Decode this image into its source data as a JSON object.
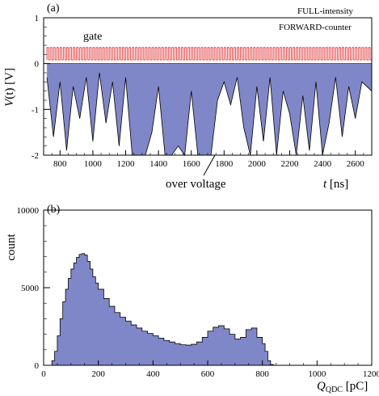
{
  "panel_a": {
    "label": "(a)",
    "legend_line1": "FULL-intensity",
    "legend_line2": "FORWARD-counter",
    "ylabel_italic": "V",
    "ylabel_rest": "(t) [V]",
    "xlabel_italic": "t",
    "xlabel_rest": " [ns]",
    "annotation_gate": "gate",
    "annotation_over": "over voltage"
  },
  "panel_b": {
    "label": "(b)",
    "ylabel": "count",
    "xlabel_main": "Q",
    "xlabel_sub": "QDC",
    "xlabel_unit": " [pC]"
  },
  "colors": {
    "fill": "#8087c8",
    "gate": "#dd2222",
    "line": "#000000"
  },
  "chart_data": [
    {
      "type": "line",
      "title": "",
      "xlabel": "t [ns]",
      "ylabel": "V(t) [V]",
      "xlim": [
        700,
        2700
      ],
      "ylim": [
        -2,
        1
      ],
      "xticks": [
        800,
        1000,
        1200,
        1400,
        1600,
        1800,
        2000,
        2200,
        2400,
        2600
      ],
      "yticks": [
        -2,
        -1,
        0,
        1
      ],
      "gate": {
        "name": "gate",
        "high": 0.35,
        "low": 0.08,
        "x": [
          720,
          2700
        ],
        "description_values_ns_period": 20
      },
      "signal": {
        "name": "FULL-intensity FORWARD-counter",
        "x": [
          720,
          760,
          800,
          840,
          880,
          920,
          960,
          1000,
          1040,
          1080,
          1120,
          1160,
          1200,
          1240,
          1280,
          1320,
          1360,
          1400,
          1440,
          1480,
          1520,
          1560,
          1600,
          1640,
          1680,
          1720,
          1760,
          1800,
          1840,
          1880,
          1920,
          1960,
          2000,
          2040,
          2080,
          2120,
          2160,
          2200,
          2240,
          2280,
          2320,
          2360,
          2400,
          2440,
          2480,
          2520,
          2560,
          2600,
          2640,
          2700
        ],
        "y": [
          -0.3,
          -1.6,
          -0.4,
          -1.9,
          -0.5,
          -1.2,
          -0.3,
          -1.7,
          -0.2,
          -1.3,
          -0.4,
          -1.8,
          -0.3,
          -2.0,
          -2.0,
          -2.0,
          -1.5,
          -0.5,
          -2.0,
          -2.0,
          -1.8,
          -2.0,
          -0.6,
          -2.0,
          -2.0,
          -2.0,
          -0.8,
          -0.4,
          -0.9,
          -0.3,
          -1.4,
          -2.0,
          -0.5,
          -1.7,
          -0.3,
          -2.0,
          -0.6,
          -1.1,
          -2.0,
          -0.7,
          -1.9,
          -0.4,
          -2.0,
          -1.3,
          -0.3,
          -1.6,
          -0.5,
          -1.2,
          -0.4,
          -0.6
        ]
      },
      "annotations": [
        "gate",
        "over voltage"
      ]
    },
    {
      "type": "area",
      "title": "",
      "xlabel": "Q_QDC [pC]",
      "ylabel": "count",
      "xlim": [
        0,
        1200
      ],
      "ylim": [
        0,
        10000
      ],
      "xticks": [
        0,
        200,
        400,
        600,
        800,
        1000,
        1200
      ],
      "yticks": [
        0,
        5000,
        10000
      ],
      "series": [
        {
          "name": "",
          "x": [
            30,
            40,
            50,
            60,
            70,
            80,
            90,
            100,
            110,
            120,
            130,
            140,
            150,
            160,
            170,
            180,
            190,
            200,
            220,
            240,
            260,
            280,
            300,
            320,
            340,
            360,
            380,
            400,
            420,
            440,
            460,
            480,
            500,
            520,
            540,
            560,
            580,
            600,
            620,
            640,
            660,
            680,
            700,
            720,
            740,
            760,
            780,
            800,
            810,
            820,
            830,
            840
          ],
          "values": [
            300,
            900,
            1900,
            3000,
            4100,
            4900,
            5600,
            6200,
            6600,
            6950,
            7150,
            7200,
            7100,
            6700,
            6200,
            5700,
            5300,
            4900,
            4300,
            3800,
            3400,
            3100,
            2850,
            2600,
            2400,
            2200,
            2050,
            1900,
            1750,
            1600,
            1500,
            1400,
            1320,
            1300,
            1350,
            1500,
            1800,
            2200,
            2450,
            2550,
            2350,
            2000,
            1700,
            1800,
            2300,
            2400,
            1800,
            1400,
            900,
            300,
            50,
            0
          ]
        }
      ]
    }
  ]
}
